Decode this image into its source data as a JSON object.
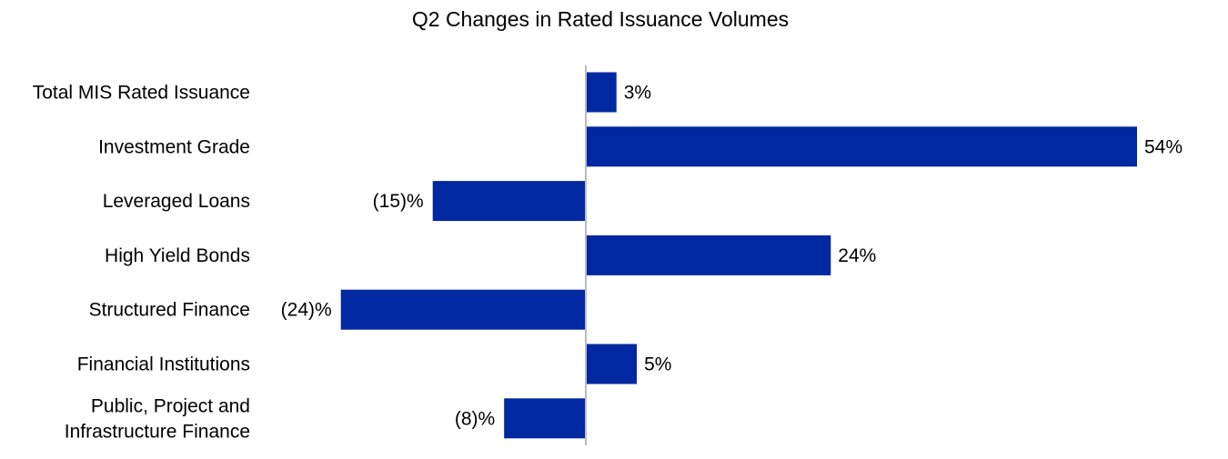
{
  "chart_data": {
    "type": "bar",
    "orientation": "horizontal",
    "title": "Q2 Changes in Rated Issuance Volumes",
    "categories": [
      [
        "Total MIS Rated Issuance"
      ],
      [
        "Investment Grade"
      ],
      [
        "Leveraged Loans"
      ],
      [
        "High Yield Bonds"
      ],
      [
        "Structured Finance"
      ],
      [
        "Financial Institutions"
      ],
      [
        "Public, Project and",
        "Infrastructure Finance"
      ]
    ],
    "values": [
      3,
      54,
      -15,
      24,
      -24,
      5,
      -8
    ],
    "data_labels": [
      "3%",
      "54%",
      "(15)%",
      "24%",
      "(24)%",
      "5%",
      "(8)%"
    ],
    "unit": "%",
    "xlim": [
      -24,
      54
    ],
    "xlabel": "",
    "ylabel": "",
    "grid": false,
    "legend": "none",
    "colors": {
      "bar": "#0028a0",
      "axis": "#b8bcc8",
      "text": "#000000"
    }
  }
}
